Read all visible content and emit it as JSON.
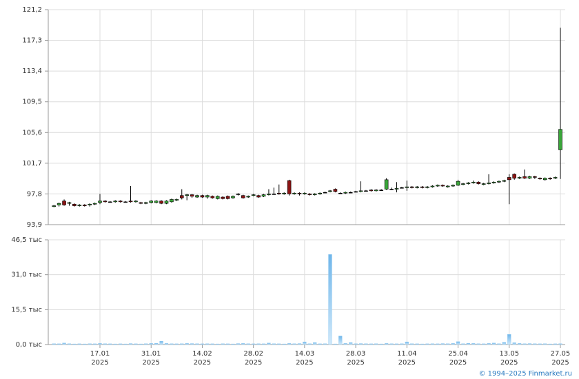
{
  "chart_data": {
    "type": "candlestick",
    "year": "2025",
    "footer": "© 1994–2025 Finmarket.ru",
    "categories": [
      null,
      null,
      null,
      null,
      null,
      null,
      null,
      null,
      null,
      "17.01",
      null,
      null,
      null,
      null,
      null,
      null,
      null,
      null,
      null,
      "31.01",
      null,
      null,
      null,
      null,
      null,
      null,
      null,
      null,
      null,
      "14.02",
      null,
      null,
      null,
      null,
      null,
      null,
      null,
      null,
      null,
      "28.02",
      null,
      null,
      null,
      null,
      null,
      null,
      null,
      null,
      null,
      "14.03",
      null,
      null,
      null,
      null,
      null,
      null,
      null,
      null,
      null,
      "28.03",
      null,
      null,
      null,
      null,
      null,
      null,
      null,
      null,
      null,
      "11.04",
      null,
      null,
      null,
      null,
      null,
      null,
      null,
      null,
      null,
      "25.04",
      null,
      null,
      null,
      null,
      null,
      null,
      null,
      null,
      null,
      "13.05",
      null,
      null,
      null,
      null,
      null,
      null,
      null,
      null,
      null,
      "27.05"
    ],
    "open": [
      96.2,
      96.4,
      96.9,
      96.6,
      96.5,
      96.3,
      96.4,
      96.4,
      96.5,
      96.7,
      96.9,
      96.8,
      96.8,
      96.9,
      96.8,
      96.9,
      96.8,
      96.7,
      96.6,
      96.7,
      96.7,
      96.9,
      96.6,
      96.8,
      97.0,
      97.6,
      97.6,
      97.7,
      97.4,
      97.6,
      97.4,
      97.5,
      97.2,
      97.4,
      97.5,
      97.3,
      97.8,
      97.6,
      97.4,
      97.6,
      97.6,
      97.5,
      97.7,
      97.8,
      97.9,
      97.8,
      99.5,
      97.8,
      97.9,
      97.8,
      97.8,
      97.7,
      97.8,
      98.0,
      98.1,
      98.4,
      97.9,
      97.9,
      98.0,
      98.1,
      98.1,
      98.2,
      98.3,
      98.2,
      98.3,
      98.4,
      98.4,
      98.4,
      98.6,
      98.6,
      98.7,
      98.6,
      98.7,
      98.6,
      98.7,
      98.8,
      98.9,
      98.7,
      98.8,
      98.9,
      99.0,
      99.1,
      99.2,
      99.3,
      99.0,
      99.1,
      99.2,
      99.3,
      99.4,
      99.9,
      100.3,
      99.8,
      100.0,
      99.8,
      100.0,
      99.8,
      99.6,
      99.8,
      99.8,
      103.4
    ],
    "high": [
      96.4,
      96.7,
      97.1,
      96.8,
      96.6,
      96.5,
      96.5,
      96.6,
      96.7,
      97.8,
      97.0,
      96.9,
      97.0,
      97.0,
      96.9,
      98.8,
      97.0,
      96.8,
      96.8,
      97.0,
      97.0,
      97.0,
      97.0,
      97.2,
      97.2,
      98.4,
      97.8,
      97.8,
      97.7,
      97.7,
      97.7,
      97.6,
      97.6,
      97.5,
      97.6,
      97.6,
      97.9,
      97.7,
      97.6,
      97.8,
      97.7,
      97.8,
      98.4,
      98.6,
      99.0,
      98.0,
      99.6,
      98.0,
      98.0,
      98.0,
      97.9,
      97.9,
      98.0,
      98.1,
      98.3,
      98.5,
      98.0,
      98.1,
      98.1,
      98.2,
      99.4,
      98.3,
      98.4,
      98.4,
      98.4,
      99.8,
      98.6,
      99.3,
      98.7,
      99.5,
      98.8,
      98.8,
      98.8,
      98.8,
      98.9,
      99.0,
      99.0,
      98.9,
      99.0,
      99.6,
      99.2,
      99.3,
      99.5,
      99.4,
      99.2,
      100.3,
      99.4,
      99.5,
      99.6,
      100.3,
      100.4,
      100.0,
      100.9,
      100.1,
      100.1,
      99.9,
      99.9,
      99.9,
      100.0,
      118.9
    ],
    "low": [
      96.1,
      96.2,
      96.3,
      96.3,
      96.2,
      96.2,
      96.2,
      96.2,
      96.4,
      96.5,
      96.7,
      96.7,
      96.7,
      96.7,
      96.7,
      96.7,
      96.7,
      96.5,
      96.5,
      96.6,
      96.6,
      96.5,
      96.5,
      96.7,
      96.9,
      97.1,
      97.0,
      97.3,
      97.3,
      97.3,
      97.2,
      97.2,
      97.1,
      97.1,
      97.1,
      97.2,
      97.6,
      97.2,
      97.3,
      97.5,
      97.3,
      97.4,
      97.6,
      97.7,
      97.7,
      97.7,
      97.6,
      97.7,
      97.6,
      97.7,
      97.6,
      97.6,
      97.7,
      97.9,
      98.0,
      98.0,
      97.8,
      97.8,
      97.9,
      98.0,
      98.0,
      98.1,
      98.1,
      98.1,
      98.2,
      98.3,
      98.3,
      98.0,
      98.5,
      98.2,
      98.5,
      98.5,
      98.5,
      98.5,
      98.6,
      98.7,
      98.7,
      98.6,
      98.7,
      98.8,
      98.9,
      99.0,
      99.1,
      99.0,
      98.9,
      99.0,
      99.1,
      99.2,
      99.3,
      96.5,
      99.6,
      99.7,
      99.7,
      99.7,
      99.7,
      99.6,
      99.5,
      99.6,
      99.7,
      99.7
    ],
    "close": [
      96.3,
      96.6,
      96.4,
      96.7,
      96.3,
      96.4,
      96.3,
      96.5,
      96.6,
      96.9,
      96.8,
      96.8,
      96.9,
      96.8,
      96.8,
      96.8,
      96.9,
      96.6,
      96.7,
      96.9,
      96.9,
      96.6,
      96.9,
      97.1,
      97.1,
      97.3,
      97.7,
      97.5,
      97.6,
      97.4,
      97.6,
      97.3,
      97.5,
      97.2,
      97.2,
      97.5,
      97.8,
      97.3,
      97.5,
      97.7,
      97.4,
      97.7,
      97.8,
      97.8,
      97.8,
      97.9,
      97.8,
      97.9,
      97.8,
      97.9,
      97.7,
      97.8,
      97.9,
      98.0,
      98.2,
      98.1,
      97.9,
      98.0,
      98.0,
      98.1,
      98.2,
      98.2,
      98.2,
      98.3,
      98.3,
      99.6,
      98.4,
      98.5,
      98.6,
      98.7,
      98.6,
      98.7,
      98.6,
      98.7,
      98.8,
      98.9,
      98.8,
      98.8,
      98.9,
      99.4,
      99.1,
      99.2,
      99.3,
      99.1,
      99.1,
      99.2,
      99.3,
      99.4,
      99.5,
      99.6,
      99.8,
      99.9,
      99.8,
      100.0,
      99.9,
      99.7,
      99.8,
      99.7,
      99.9,
      106.0
    ],
    "up_color": "#3aa63a",
    "down_color": "#8b1414",
    "ylim": [
      93.9,
      121.2
    ],
    "yticks": [
      {
        "value": 93.9,
        "label": "93,9"
      },
      {
        "value": 97.8,
        "label": "97,8"
      },
      {
        "value": 101.7,
        "label": "101,7"
      },
      {
        "value": 105.6,
        "label": "105,6"
      },
      {
        "value": 109.5,
        "label": "109,5"
      },
      {
        "value": 113.4,
        "label": "113,4"
      },
      {
        "value": 117.3,
        "label": "117,3"
      },
      {
        "value": 121.2,
        "label": "121,2"
      }
    ],
    "grid": true,
    "volume": {
      "type": "bar",
      "color": "#8cc8f0",
      "values": [
        400,
        350,
        700,
        400,
        300,
        350,
        300,
        400,
        350,
        500,
        400,
        350,
        300,
        350,
        300,
        450,
        350,
        300,
        400,
        500,
        600,
        1500,
        500,
        400,
        350,
        400,
        500,
        450,
        400,
        350,
        400,
        350,
        300,
        400,
        350,
        300,
        450,
        500,
        400,
        350,
        400,
        350,
        700,
        400,
        350,
        300,
        500,
        400,
        450,
        1200,
        400,
        900,
        350,
        400,
        40000,
        300,
        3800,
        500,
        900,
        400,
        450,
        400,
        350,
        400,
        300,
        500,
        400,
        350,
        400,
        1200,
        400,
        350,
        300,
        350,
        400,
        350,
        450,
        400,
        500,
        1300,
        400,
        600,
        500,
        400,
        350,
        500,
        700,
        400,
        1000,
        4500,
        800,
        500,
        400,
        450,
        400,
        350,
        400,
        300,
        350,
        400
      ],
      "ylim": [
        0,
        46500
      ],
      "yticks": [
        {
          "value": 0,
          "label": "0,0 тыс"
        },
        {
          "value": 15500,
          "label": "15,5 тыс"
        },
        {
          "value": 31000,
          "label": "31,0 тыс"
        },
        {
          "value": 46500,
          "label": "46,5 тыс"
        }
      ]
    }
  }
}
